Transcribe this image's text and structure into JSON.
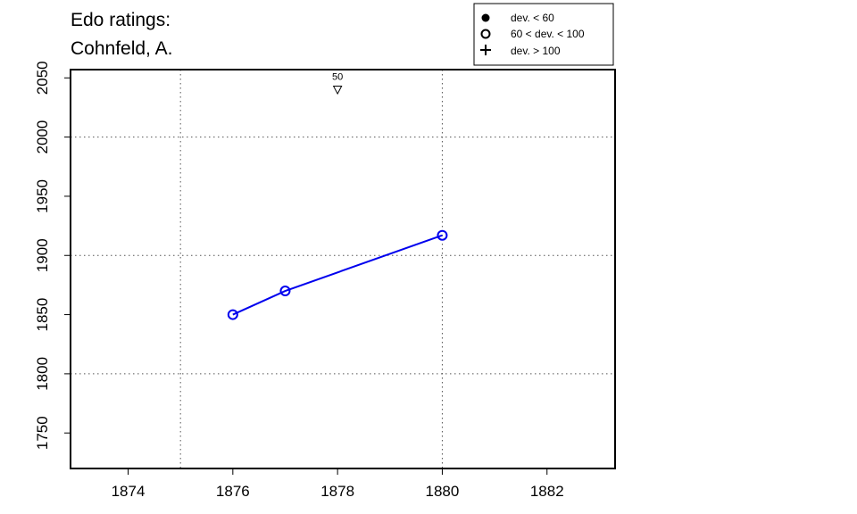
{
  "chart_data": {
    "type": "line",
    "title_lines": [
      "Edo ratings:",
      "Cohnfeld, A."
    ],
    "xlabel": "",
    "ylabel": "",
    "xlim": [
      1872.9,
      1883.3
    ],
    "ylim": [
      1720,
      2057
    ],
    "x_ticks": [
      1874,
      1876,
      1878,
      1880,
      1882
    ],
    "y_ticks": [
      1750,
      1800,
      1850,
      1900,
      1950,
      2000,
      2050
    ],
    "grid": {
      "vertical_at": [
        1875,
        1880
      ],
      "horizontal_at": [
        1800,
        1900,
        2000
      ],
      "style": "dotted"
    },
    "series": [
      {
        "color": "#0000ee",
        "marker": "open-circle",
        "points": [
          {
            "x": 1876,
            "y": 1850
          },
          {
            "x": 1877,
            "y": 1870
          },
          {
            "x": 1880,
            "y": 1917
          }
        ]
      }
    ],
    "annotations": [
      {
        "x": 1878,
        "y": 2040,
        "marker": "open-triangle-down",
        "label": "50"
      }
    ],
    "legend": {
      "position": "top-right",
      "entries": [
        {
          "label": "dev. < 60",
          "marker": "filled-circle"
        },
        {
          "label": "60 < dev. < 100",
          "marker": "open-circle"
        },
        {
          "label": "dev. > 100",
          "marker": "plus"
        }
      ]
    }
  }
}
